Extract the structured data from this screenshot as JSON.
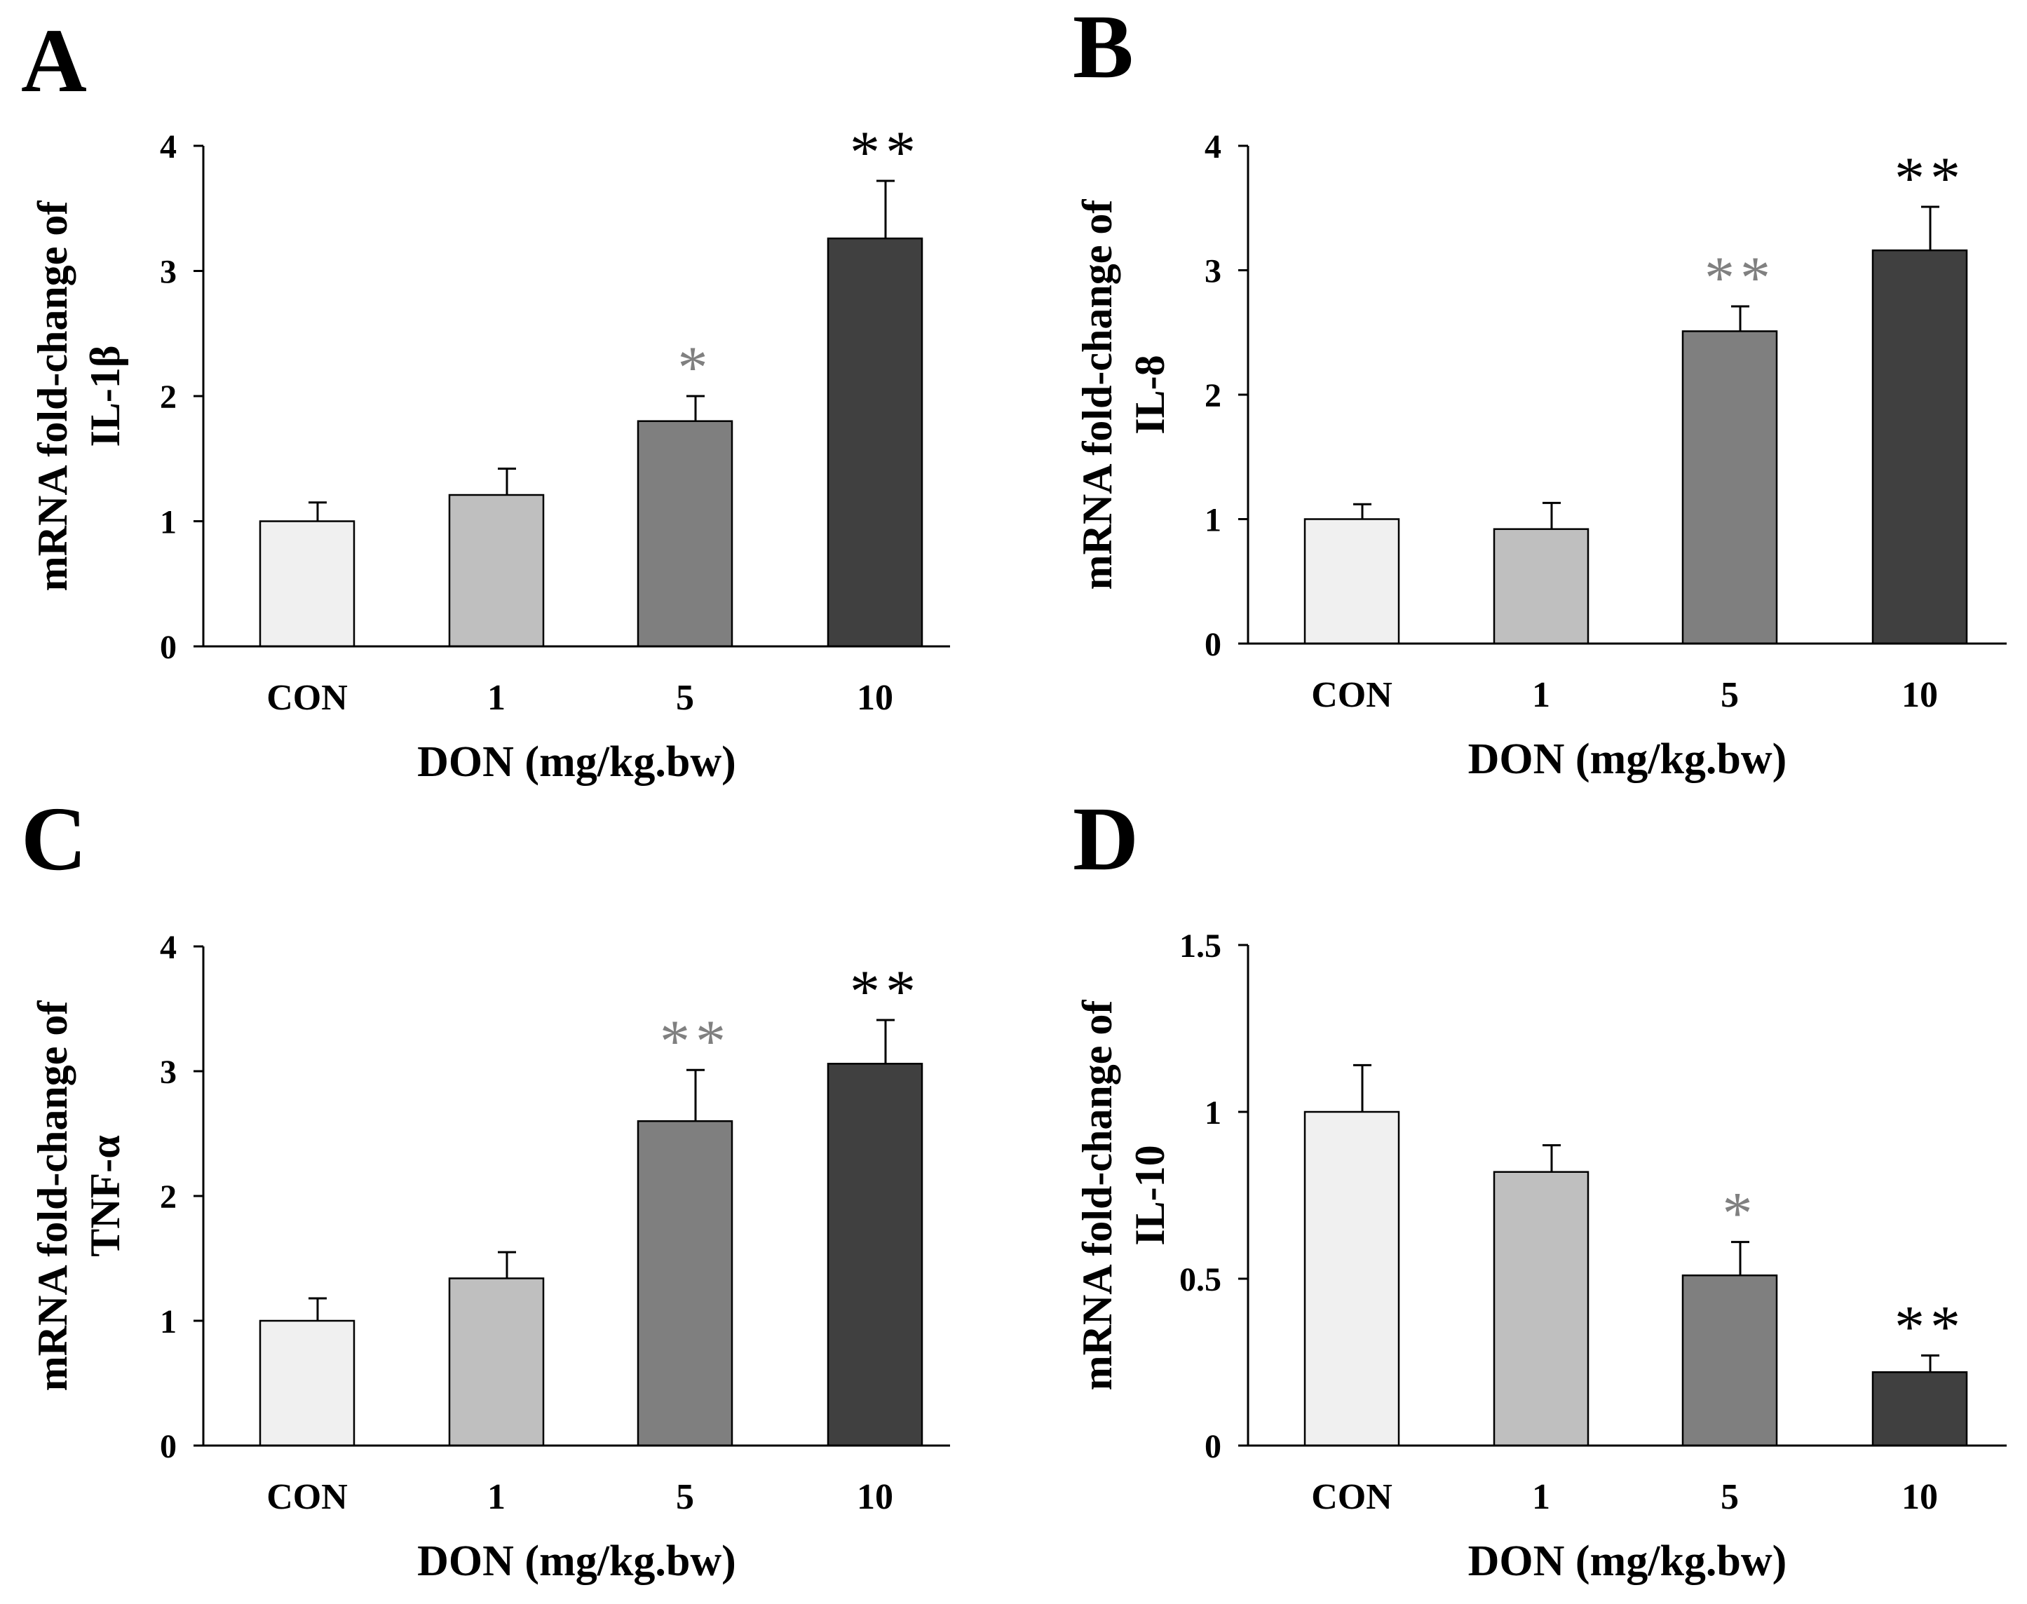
{
  "chart_data": [
    {
      "panel": "A",
      "type": "bar",
      "categories": [
        "CON",
        "1",
        "5",
        "10"
      ],
      "values": [
        1.0,
        1.21,
        1.8,
        3.26
      ],
      "errors": [
        0.15,
        0.21,
        0.2,
        0.46
      ],
      "significance": [
        "",
        "",
        "*",
        "**"
      ],
      "ylabel": [
        "mRNA fold-change of",
        "IL-1β"
      ],
      "xlabel": "DON (mg/kg.bw)",
      "ylim": [
        0,
        4
      ],
      "yticks": [
        0,
        1,
        2,
        3,
        4
      ],
      "yticklabels": [
        "0",
        "1",
        "2",
        "3",
        "4"
      ]
    },
    {
      "panel": "B",
      "type": "bar",
      "categories": [
        "CON",
        "1",
        "5",
        "10"
      ],
      "values": [
        1.0,
        0.92,
        2.51,
        3.16
      ],
      "errors": [
        0.12,
        0.21,
        0.2,
        0.35
      ],
      "significance": [
        "",
        "",
        "**",
        "**"
      ],
      "ylabel": [
        "mRNA fold-change of",
        "IL-8"
      ],
      "xlabel": "DON (mg/kg.bw)",
      "ylim": [
        0,
        4
      ],
      "yticks": [
        0,
        1,
        2,
        3,
        4
      ],
      "yticklabels": [
        "0",
        "1",
        "2",
        "3",
        "4"
      ]
    },
    {
      "panel": "C",
      "type": "bar",
      "categories": [
        "CON",
        "1",
        "5",
        "10"
      ],
      "values": [
        1.0,
        1.34,
        2.6,
        3.06
      ],
      "errors": [
        0.18,
        0.21,
        0.41,
        0.35
      ],
      "significance": [
        "",
        "",
        "**",
        "**"
      ],
      "ylabel": [
        "mRNA fold-change of",
        "TNF-α"
      ],
      "xlabel": "DON (mg/kg.bw)",
      "ylim": [
        0,
        4
      ],
      "yticks": [
        0,
        1,
        2,
        3,
        4
      ],
      "yticklabels": [
        "0",
        "1",
        "2",
        "3",
        "4"
      ]
    },
    {
      "panel": "D",
      "type": "bar",
      "categories": [
        "CON",
        "1",
        "5",
        "10"
      ],
      "values": [
        1.0,
        0.82,
        0.51,
        0.22
      ],
      "errors": [
        0.14,
        0.08,
        0.1,
        0.05
      ],
      "significance": [
        "",
        "",
        "*",
        "**"
      ],
      "ylabel": [
        "mRNA fold-change of",
        "IL-10"
      ],
      "xlabel": "DON (mg/kg.bw)",
      "ylim": [
        0,
        1.5
      ],
      "yticks": [
        0,
        0.5,
        1,
        1.5
      ],
      "yticklabels": [
        "0",
        "0.5",
        "1",
        "1.5"
      ]
    }
  ],
  "colors": {
    "bars": [
      "#f0f0f0",
      "#bfbfbf",
      "#7f7f7f",
      "#404040"
    ],
    "significance": [
      "#000000",
      "#000000",
      "#808080",
      "#000000"
    ],
    "axis": "#000000"
  }
}
